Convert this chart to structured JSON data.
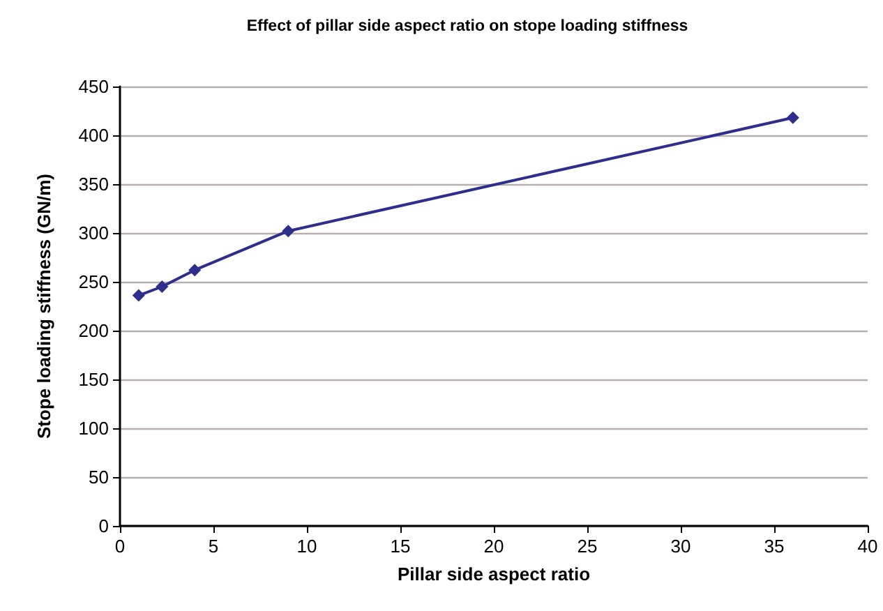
{
  "chart_data": {
    "type": "line",
    "title": "Effect of pillar side aspect ratio on stope loading stiffness",
    "xlabel": "Pillar side aspect ratio",
    "ylabel": "Stope loading stiffness (GN/m)",
    "x": [
      1,
      2.25,
      4,
      9,
      36
    ],
    "series": [
      {
        "color": "#2e2e8c",
        "values": [
          236,
          245,
          262,
          302,
          418
        ]
      }
    ],
    "xlim": [
      0,
      40
    ],
    "xticks": [
      0,
      5,
      10,
      15,
      20,
      25,
      30,
      35,
      40
    ],
    "ylim": [
      0,
      450
    ],
    "yticks": [
      0,
      50,
      100,
      150,
      200,
      250,
      300,
      350,
      400,
      450
    ],
    "grid": "y",
    "marker": "diamond",
    "line_style": "solid"
  }
}
